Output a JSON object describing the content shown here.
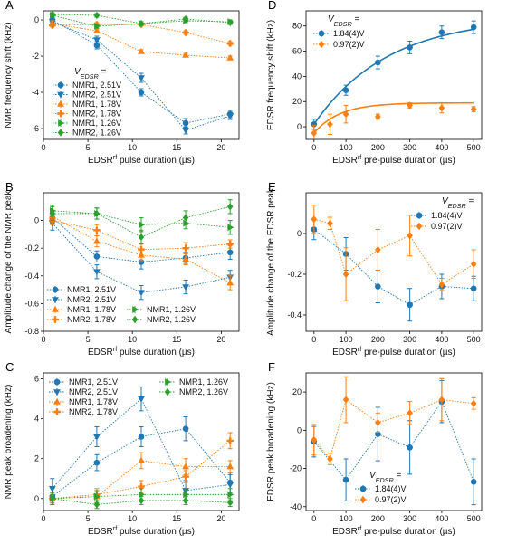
{
  "colors": {
    "blue": "#1f77b4",
    "orange": "#ff7f0e",
    "green": "#2ca02c"
  },
  "chart_data": [
    {
      "panel": "A",
      "type": "line",
      "xlabel": "EDSR^rf pulse duration (µs)",
      "ylabel": "NMR frequency shift (kHz)",
      "xlim": [
        0,
        22
      ],
      "ylim": [
        -6.6,
        0.5
      ],
      "xticks": [
        0,
        5,
        10,
        15,
        20
      ],
      "yticks": [
        0,
        -2,
        -4,
        -6
      ],
      "legend_title": "V_EDSR =",
      "legend_position": "lower-left",
      "series": [
        {
          "name": "NMR1, 2.51V",
          "color": "blue",
          "marker": "circle",
          "x": [
            1,
            6,
            11,
            16,
            21
          ],
          "y": [
            0.0,
            -1.4,
            -4.0,
            -5.7,
            -5.2
          ],
          "err": [
            0.15,
            0.2,
            0.2,
            0.25,
            0.2
          ]
        },
        {
          "name": "NMR2, 2.51V",
          "color": "blue",
          "marker": "triangle-down",
          "x": [
            1,
            6,
            11,
            16,
            21
          ],
          "y": [
            -0.1,
            -1.1,
            -3.2,
            -6.1,
            -5.3
          ],
          "err": [
            0.2,
            0.2,
            0.25,
            0.2,
            0.2
          ]
        },
        {
          "name": "NMR1, 1.78V",
          "color": "orange",
          "marker": "triangle-up",
          "x": [
            1,
            6,
            11,
            16,
            21
          ],
          "y": [
            -0.2,
            -0.6,
            -1.75,
            -1.95,
            -2.1
          ],
          "err": [
            0.15,
            0.1,
            0.1,
            0.1,
            0.1
          ]
        },
        {
          "name": "NMR2, 1.78V",
          "color": "orange",
          "marker": "cross",
          "x": [
            1,
            6,
            11,
            16,
            21
          ],
          "y": [
            -0.3,
            -0.25,
            -0.25,
            -0.7,
            -1.3
          ],
          "err": [
            0.1,
            0.1,
            0.1,
            0.1,
            0.1
          ]
        },
        {
          "name": "NMR1, 1.26V",
          "color": "green",
          "marker": "triangle-right",
          "x": [
            1,
            6,
            11,
            16,
            21
          ],
          "y": [
            0.25,
            -0.35,
            -0.2,
            -0.05,
            -0.1
          ],
          "err": [
            0.1,
            0.1,
            0.1,
            0.1,
            0.1
          ]
        },
        {
          "name": "NMR2, 1.26V",
          "color": "green",
          "marker": "diamond",
          "x": [
            1,
            6,
            11,
            16,
            21
          ],
          "y": [
            0.3,
            0.25,
            -0.2,
            0.05,
            -0.15
          ],
          "err": [
            0.1,
            0.1,
            0.1,
            0.1,
            0.1
          ]
        }
      ]
    },
    {
      "panel": "B",
      "type": "line",
      "xlabel": "EDSR^rf pulse duration (µs)",
      "ylabel": "Amplitude change of the NMR peak",
      "xlim": [
        0,
        22
      ],
      "ylim": [
        -0.8,
        0.2
      ],
      "xticks": [
        0,
        5,
        10,
        15,
        20
      ],
      "yticks": [
        0.0,
        -0.2,
        -0.4,
        -0.6,
        -0.8
      ],
      "legend_position": "lower",
      "series": [
        {
          "name": "NMR1, 2.51V",
          "color": "blue",
          "marker": "circle",
          "x": [
            1,
            6,
            11,
            16,
            21
          ],
          "y": [
            0.02,
            -0.26,
            -0.3,
            -0.27,
            -0.23
          ],
          "err": [
            0.04,
            0.04,
            0.05,
            0.04,
            0.05
          ]
        },
        {
          "name": "NMR2, 2.51V",
          "color": "blue",
          "marker": "triangle-down",
          "x": [
            1,
            6,
            11,
            16,
            21
          ],
          "y": [
            -0.02,
            -0.37,
            -0.52,
            -0.48,
            -0.41
          ],
          "err": [
            0.05,
            0.05,
            0.05,
            0.05,
            0.05
          ]
        },
        {
          "name": "NMR1, 1.78V",
          "color": "orange",
          "marker": "triangle-up",
          "x": [
            1,
            6,
            11,
            16,
            21
          ],
          "y": [
            0.03,
            -0.15,
            -0.25,
            -0.28,
            -0.45
          ],
          "err": [
            0.04,
            0.04,
            0.04,
            0.04,
            0.05
          ]
        },
        {
          "name": "NMR2, 1.78V",
          "color": "orange",
          "marker": "cross",
          "x": [
            1,
            6,
            11,
            16,
            21
          ],
          "y": [
            0.0,
            -0.07,
            -0.21,
            -0.2,
            -0.17
          ],
          "err": [
            0.03,
            0.04,
            0.04,
            0.04,
            0.03
          ]
        },
        {
          "name": "NMR1, 1.26V",
          "color": "green",
          "marker": "triangle-right",
          "x": [
            1,
            6,
            11,
            16,
            21
          ],
          "y": [
            0.07,
            0.05,
            -0.03,
            -0.02,
            -0.05
          ],
          "err": [
            0.04,
            0.04,
            0.05,
            0.04,
            0.05
          ]
        },
        {
          "name": "NMR2, 1.26V",
          "color": "green",
          "marker": "diamond",
          "x": [
            1,
            6,
            11,
            16,
            21
          ],
          "y": [
            0.05,
            0.05,
            -0.12,
            0.02,
            0.1
          ],
          "err": [
            0.05,
            0.04,
            0.05,
            0.05,
            0.05
          ]
        }
      ]
    },
    {
      "panel": "C",
      "type": "line",
      "xlabel": "EDSR^rf pulse duration (µs)",
      "ylabel": "NMR peak broadening (kHz)",
      "xlim": [
        0,
        22
      ],
      "ylim": [
        -0.6,
        6.3
      ],
      "xticks": [
        0,
        5,
        10,
        15,
        20
      ],
      "yticks": [
        0,
        2,
        4,
        6
      ],
      "legend_position": "top",
      "series": [
        {
          "name": "NMR1, 2.51V",
          "color": "blue",
          "marker": "circle",
          "x": [
            1,
            6,
            11,
            16,
            21
          ],
          "y": [
            0.1,
            1.8,
            3.1,
            3.5,
            0.8
          ],
          "err": [
            0.4,
            0.4,
            0.5,
            0.6,
            0.5
          ]
        },
        {
          "name": "NMR2, 2.51V",
          "color": "blue",
          "marker": "triangle-down",
          "x": [
            1,
            6,
            11,
            16,
            21
          ],
          "y": [
            0.5,
            3.1,
            5.0,
            0.4,
            0.7
          ],
          "err": [
            0.5,
            0.5,
            0.6,
            0.5,
            0.5
          ]
        },
        {
          "name": "NMR1, 1.78V",
          "color": "orange",
          "marker": "triangle-up",
          "x": [
            1,
            6,
            11,
            16,
            21
          ],
          "y": [
            0.0,
            0.1,
            1.9,
            1.6,
            1.6
          ],
          "err": [
            0.3,
            0.3,
            0.4,
            0.4,
            0.3
          ]
        },
        {
          "name": "NMR2, 1.78V",
          "color": "orange",
          "marker": "cross",
          "x": [
            1,
            6,
            11,
            16,
            21
          ],
          "y": [
            0.0,
            0.2,
            0.6,
            1.1,
            2.9
          ],
          "err": [
            0.3,
            0.3,
            0.3,
            0.3,
            0.4
          ]
        },
        {
          "name": "NMR1, 1.26V",
          "color": "green",
          "marker": "triangle-right",
          "x": [
            1,
            6,
            11,
            16,
            21
          ],
          "y": [
            0.0,
            0.1,
            0.2,
            0.2,
            0.2
          ],
          "err": [
            0.3,
            0.3,
            0.3,
            0.3,
            0.3
          ]
        },
        {
          "name": "NMR2, 1.26V",
          "color": "green",
          "marker": "diamond",
          "x": [
            1,
            6,
            11,
            16,
            21
          ],
          "y": [
            0.0,
            -0.3,
            -0.1,
            -0.1,
            -0.2
          ],
          "err": [
            0.2,
            0.2,
            0.2,
            0.2,
            0.2
          ]
        }
      ]
    },
    {
      "panel": "D",
      "type": "scatter",
      "xlabel": "EDSR^rf pre-pulse duration (µs)",
      "ylabel": "EDSR frequency shift (kHz)",
      "xlim": [
        -25,
        525
      ],
      "ylim": [
        -10,
        92
      ],
      "xticks": [
        0,
        100,
        200,
        300,
        400,
        500
      ],
      "yticks": [
        0,
        20,
        40,
        60,
        80
      ],
      "legend_title": "V_EDSR =",
      "legend_position": "top-left",
      "series": [
        {
          "name": "1.84(4)V",
          "color": "blue",
          "marker": "circle",
          "x": [
            0,
            100,
            200,
            300,
            400,
            500
          ],
          "y": [
            2,
            29,
            51,
            63,
            75,
            79
          ],
          "err": [
            4,
            4,
            5,
            5,
            5,
            5
          ],
          "fit": "saturating"
        },
        {
          "name": "0.97(2)V",
          "color": "orange",
          "marker": "diamond",
          "x": [
            0,
            50,
            100,
            200,
            300,
            400,
            500
          ],
          "y": [
            -5,
            2,
            10,
            8,
            17,
            15,
            14
          ],
          "err": [
            6,
            8,
            7,
            2,
            2,
            4,
            2
          ],
          "fit": "saturating"
        }
      ]
    },
    {
      "panel": "E",
      "type": "line",
      "xlabel": "EDSR^rf pre-pulse duration (µs)",
      "ylabel": "Amplitude change of the EDSR peak",
      "xlim": [
        -25,
        525
      ],
      "ylim": [
        -0.48,
        0.2
      ],
      "xticks": [
        0,
        100,
        200,
        300,
        400,
        500
      ],
      "yticks": [
        0.0,
        -0.2,
        -0.4
      ],
      "legend_title": "V_EDSR =",
      "legend_position": "top-right",
      "series": [
        {
          "name": "1.84(4)V",
          "color": "blue",
          "marker": "circle",
          "x": [
            0,
            100,
            200,
            300,
            400,
            500
          ],
          "y": [
            0.02,
            -0.1,
            -0.26,
            -0.35,
            -0.26,
            -0.27
          ],
          "err": [
            0.05,
            0.08,
            0.08,
            0.08,
            0.06,
            0.06
          ]
        },
        {
          "name": "0.97(2)V",
          "color": "orange",
          "marker": "diamond",
          "x": [
            0,
            50,
            100,
            200,
            300,
            400,
            500
          ],
          "y": [
            0.07,
            0.05,
            -0.2,
            -0.08,
            -0.01,
            -0.25,
            -0.15
          ],
          "err": [
            0.07,
            0.03,
            0.13,
            0.1,
            0.1,
            0.03,
            0.07
          ]
        }
      ]
    },
    {
      "panel": "F",
      "type": "line",
      "xlabel": "EDSR^rf pre-pulse duration (µs)",
      "ylabel": "EDSR peak broadening (kHz)",
      "xlim": [
        -25,
        525
      ],
      "ylim": [
        -42,
        30
      ],
      "xticks": [
        0,
        100,
        200,
        300,
        400,
        500
      ],
      "yticks": [
        20,
        0,
        -20,
        -40
      ],
      "legend_title": "V_EDSR =",
      "legend_position": "lower-right",
      "series": [
        {
          "name": "1.84(4)V",
          "color": "blue",
          "marker": "circle",
          "x": [
            0,
            100,
            200,
            300,
            400,
            500
          ],
          "y": [
            -6,
            -26,
            -2,
            -9,
            15,
            -27
          ],
          "err": [
            8,
            11,
            14,
            14,
            11,
            12
          ]
        },
        {
          "name": "0.97(2)V",
          "color": "orange",
          "marker": "diamond",
          "x": [
            0,
            50,
            100,
            200,
            300,
            400,
            500
          ],
          "y": [
            -5,
            -15,
            16,
            4,
            9,
            16,
            14
          ],
          "err": [
            8,
            3,
            12,
            5,
            6,
            11,
            3
          ]
        }
      ]
    }
  ]
}
